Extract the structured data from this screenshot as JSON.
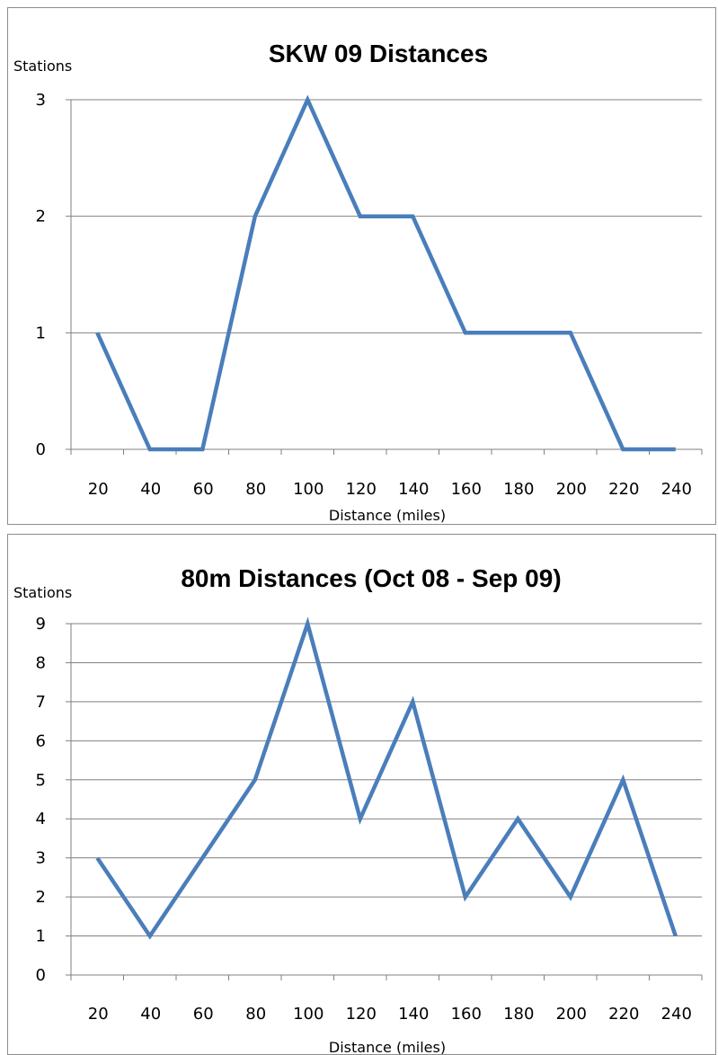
{
  "colors": {
    "series": "#4a7ebb",
    "grid": "#808080",
    "axis": "#808080"
  },
  "chart_data": [
    {
      "type": "line",
      "title": "SKW 09 Distances",
      "xlabel": "Distance (miles)",
      "ylabel": "Stations",
      "categories": [
        "20",
        "40",
        "60",
        "80",
        "100",
        "120",
        "140",
        "160",
        "180",
        "200",
        "220",
        "240"
      ],
      "series": [
        {
          "values": [
            1,
            0,
            0,
            2,
            3,
            2,
            2,
            1,
            1,
            1,
            0,
            0
          ]
        }
      ],
      "ylim": [
        0,
        3
      ],
      "yticks": [
        0,
        1,
        2,
        3
      ],
      "grid": true,
      "legend": "none"
    },
    {
      "type": "line",
      "title": "80m Distances (Oct 08 - Sep 09)",
      "xlabel": "Distance (miles)",
      "ylabel": "Stations",
      "categories": [
        "20",
        "40",
        "60",
        "80",
        "100",
        "120",
        "140",
        "160",
        "180",
        "200",
        "220",
        "240"
      ],
      "series": [
        {
          "values": [
            3,
            1,
            3,
            5,
            9,
            4,
            7,
            2,
            4,
            2,
            5,
            1
          ]
        }
      ],
      "ylim": [
        0,
        9
      ],
      "yticks": [
        0,
        1,
        2,
        3,
        4,
        5,
        6,
        7,
        8,
        9
      ],
      "grid": true,
      "legend": "none"
    }
  ]
}
